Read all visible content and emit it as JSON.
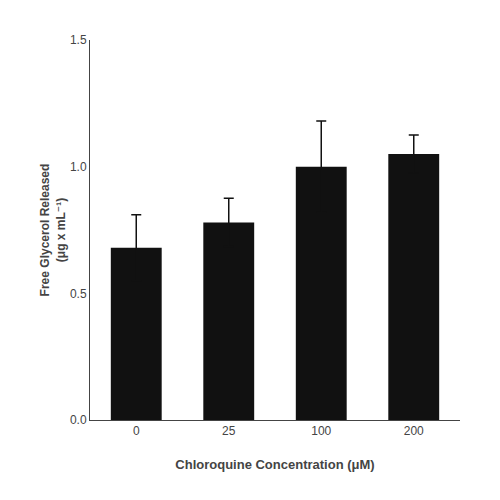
{
  "chart_data": {
    "type": "bar",
    "xlabel": "Chloroquine Concentration (μM)",
    "ylabel": "Free Glycerol Released\n(μg x mL⁻¹)",
    "categories": [
      "0",
      "25",
      "100",
      "200"
    ],
    "values": [
      0.68,
      0.78,
      1.0,
      1.05
    ],
    "errors": [
      0.13,
      0.095,
      0.18,
      0.075
    ],
    "color": "#111111",
    "ylim": [
      0.0,
      1.5
    ],
    "yticks": [
      {
        "value": 0.0,
        "label": "0.0"
      },
      0.5,
      {
        "value": 1.0,
        "label": "1.0"
      },
      1.5
    ],
    "grid": false
  }
}
